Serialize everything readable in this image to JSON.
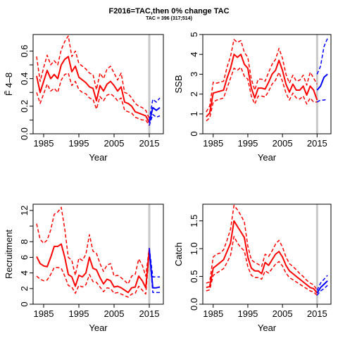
{
  "title": "F2016=TAC,then  0% change TAC",
  "subtitle": "TAC = 396 (317;514)",
  "colors": {
    "history": "#ff0000",
    "projection": "#0000ff",
    "divider": "#c8c8c8"
  },
  "chart_data": [
    {
      "type": "line",
      "xlabel": "Year",
      "ylabel": "F̄ 4–8",
      "xlim": [
        1982,
        2019
      ],
      "ylim": [
        0,
        0.72
      ],
      "xticks": [
        1985,
        1995,
        2005,
        2015
      ],
      "yticks": [
        0,
        0.2,
        0.4,
        0.6
      ],
      "ytick_labels": [
        "0.0",
        "0.2",
        "0.4",
        "0.6"
      ],
      "minor_yticks": [
        0.1,
        0.3,
        0.5
      ],
      "divider_year": 2015,
      "history": {
        "x": [
          1983,
          1984,
          1985,
          1986,
          1987,
          1988,
          1989,
          1990,
          1991,
          1992,
          1993,
          1994,
          1995,
          1996,
          1997,
          1998,
          1999,
          2000,
          2001,
          2002,
          2003,
          2004,
          2005,
          2006,
          2007,
          2008,
          2009,
          2010,
          2011,
          2012,
          2013,
          2014,
          2015
        ],
        "est": [
          0.42,
          0.3,
          0.38,
          0.46,
          0.4,
          0.43,
          0.4,
          0.5,
          0.54,
          0.56,
          0.45,
          0.49,
          0.41,
          0.39,
          0.37,
          0.34,
          0.33,
          0.24,
          0.35,
          0.31,
          0.36,
          0.38,
          0.35,
          0.31,
          0.34,
          0.23,
          0.22,
          0.2,
          0.16,
          0.15,
          0.14,
          0.13,
          0.08
        ],
        "upper": [
          0.56,
          0.38,
          0.48,
          0.57,
          0.5,
          0.53,
          0.5,
          0.61,
          0.67,
          0.71,
          0.56,
          0.6,
          0.51,
          0.49,
          0.47,
          0.44,
          0.43,
          0.32,
          0.44,
          0.4,
          0.47,
          0.49,
          0.44,
          0.39,
          0.44,
          0.3,
          0.29,
          0.26,
          0.22,
          0.2,
          0.19,
          0.17,
          0.11
        ],
        "lower": [
          0.3,
          0.22,
          0.29,
          0.36,
          0.31,
          0.33,
          0.3,
          0.39,
          0.43,
          0.44,
          0.35,
          0.38,
          0.32,
          0.3,
          0.29,
          0.26,
          0.25,
          0.18,
          0.27,
          0.24,
          0.28,
          0.29,
          0.27,
          0.24,
          0.26,
          0.17,
          0.16,
          0.15,
          0.12,
          0.11,
          0.1,
          0.1,
          0.06
        ]
      },
      "projection": {
        "x": [
          2015,
          2016,
          2017,
          2018
        ],
        "est": [
          0.08,
          0.19,
          0.17,
          0.19
        ],
        "upper": [
          0.1,
          0.25,
          0.23,
          0.26
        ],
        "lower": [
          0.06,
          0.14,
          0.12,
          0.13
        ]
      }
    },
    {
      "type": "line",
      "xlabel": "Year",
      "ylabel": "SSB",
      "xlim": [
        1982,
        2019
      ],
      "ylim": [
        0,
        5.0
      ],
      "xticks": [
        1985,
        1995,
        2005,
        2015
      ],
      "yticks": [
        0,
        1,
        2,
        3,
        4,
        5
      ],
      "ytick_labels": [
        "0",
        "1",
        "2",
        "3",
        "4",
        "5"
      ],
      "minor_yticks": [],
      "divider_year": 2015,
      "history": {
        "x": [
          1983,
          1984,
          1985,
          1986,
          1987,
          1988,
          1989,
          1990,
          1991,
          1992,
          1993,
          1994,
          1995,
          1996,
          1997,
          1998,
          1999,
          2000,
          2001,
          2002,
          2003,
          2004,
          2005,
          2006,
          2007,
          2008,
          2009,
          2010,
          2011,
          2012,
          2013,
          2014,
          2015
        ],
        "est": [
          0.85,
          1.05,
          2.05,
          2.1,
          2.15,
          2.2,
          2.8,
          3.3,
          4.0,
          3.85,
          4.0,
          3.5,
          3.3,
          2.3,
          1.8,
          2.3,
          2.3,
          2.25,
          2.6,
          3.0,
          3.2,
          3.7,
          3.2,
          2.5,
          2.1,
          2.5,
          2.2,
          2.2,
          2.4,
          1.95,
          2.4,
          2.2,
          1.7
        ],
        "upper": [
          1.1,
          1.4,
          2.6,
          2.55,
          2.6,
          2.65,
          3.35,
          3.9,
          4.75,
          4.6,
          4.7,
          4.1,
          3.85,
          2.75,
          2.2,
          2.75,
          2.75,
          2.65,
          3.1,
          3.5,
          3.75,
          4.3,
          3.8,
          3.0,
          2.55,
          2.95,
          2.65,
          2.7,
          2.95,
          2.45,
          3.1,
          2.8,
          2.5
        ],
        "lower": [
          0.65,
          0.8,
          1.6,
          1.7,
          1.75,
          1.8,
          2.3,
          2.8,
          3.3,
          3.2,
          3.35,
          2.9,
          2.75,
          1.9,
          1.5,
          1.9,
          1.9,
          1.85,
          2.15,
          2.5,
          2.7,
          3.1,
          2.65,
          2.05,
          1.7,
          2.05,
          1.8,
          1.75,
          1.9,
          1.5,
          1.8,
          1.6,
          1.6
        ]
      },
      "projection": {
        "x": [
          2015,
          2016,
          2017,
          2018
        ],
        "est": [
          2.2,
          2.4,
          2.85,
          3.0
        ],
        "upper": [
          3.0,
          3.4,
          4.4,
          4.8
        ],
        "lower": [
          1.6,
          1.7,
          1.7,
          1.75
        ]
      }
    },
    {
      "type": "line",
      "xlabel": "Year",
      "ylabel": "Recruitment",
      "xlim": [
        1982,
        2019
      ],
      "ylim": [
        0,
        12.8
      ],
      "xticks": [
        1985,
        1995,
        2005,
        2015
      ],
      "yticks": [
        0,
        2,
        4,
        6,
        8,
        12
      ],
      "ytick_labels": [
        "0",
        "2",
        "4",
        "6",
        "8",
        "12"
      ],
      "minor_yticks": [
        10
      ],
      "divider_year": 2015,
      "history": {
        "x": [
          1983,
          1984,
          1985,
          1986,
          1987,
          1988,
          1989,
          1990,
          1991,
          1992,
          1993,
          1994,
          1995,
          1996,
          1997,
          1998,
          1999,
          2000,
          2001,
          2002,
          2003,
          2004,
          2005,
          2006,
          2007,
          2008,
          2009,
          2010,
          2011,
          2012,
          2013,
          2014,
          2015
        ],
        "est": [
          6.1,
          5.2,
          4.9,
          4.8,
          6.0,
          7.4,
          7.4,
          7.7,
          6.0,
          3.8,
          3.5,
          2.3,
          3.7,
          3.5,
          4.0,
          6.0,
          4.6,
          4.4,
          3.4,
          2.6,
          3.2,
          3.0,
          2.2,
          2.3,
          2.1,
          1.8,
          1.5,
          2.1,
          2.2,
          3.6,
          3.0,
          2.1,
          7.0
        ],
        "upper": [
          10.3,
          8.3,
          7.8,
          8.2,
          9.5,
          11.5,
          11.8,
          12.4,
          9.6,
          6.0,
          5.6,
          3.7,
          5.9,
          5.6,
          6.4,
          8.9,
          6.8,
          6.5,
          5.2,
          4.2,
          5.0,
          5.2,
          3.6,
          3.7,
          3.4,
          3.0,
          2.6,
          3.6,
          3.8,
          5.8,
          5.0,
          3.6,
          7.2
        ],
        "lower": [
          3.6,
          3.2,
          3.0,
          3.1,
          3.8,
          4.7,
          4.7,
          4.6,
          3.6,
          2.4,
          2.2,
          1.4,
          2.4,
          2.2,
          2.5,
          3.8,
          2.9,
          2.8,
          2.2,
          1.6,
          2.1,
          2.0,
          1.4,
          1.5,
          1.3,
          1.1,
          0.9,
          1.3,
          1.4,
          2.3,
          1.8,
          1.3,
          6.8
        ]
      },
      "projection": {
        "x": [
          2015,
          2016,
          2017,
          2018
        ],
        "est": [
          7.0,
          2.1,
          2.1,
          2.2
        ],
        "upper": [
          7.2,
          3.5,
          3.5,
          3.5
        ],
        "lower": [
          6.8,
          1.5,
          1.5,
          1.5
        ]
      }
    },
    {
      "type": "line",
      "xlabel": "Year",
      "ylabel": "Catch",
      "xlim": [
        1982,
        2019
      ],
      "ylim": [
        0,
        1.8
      ],
      "xticks": [
        1985,
        1995,
        2005,
        2015
      ],
      "yticks": [
        0,
        0.5,
        1.0,
        1.5
      ],
      "ytick_labels": [
        "0.0",
        "0.5",
        "1.0",
        "1.5"
      ],
      "minor_yticks": [],
      "divider_year": 2015,
      "history": {
        "x": [
          1983,
          1984,
          1985,
          1986,
          1987,
          1988,
          1989,
          1990,
          1991,
          1992,
          1993,
          1994,
          1995,
          1996,
          1997,
          1998,
          1999,
          2000,
          2001,
          2002,
          2003,
          2004,
          2005,
          2006,
          2007,
          2008,
          2009,
          2010,
          2011,
          2012,
          2013,
          2014,
          2015
        ],
        "est": [
          0.3,
          0.32,
          0.65,
          0.7,
          0.75,
          0.8,
          0.95,
          1.1,
          1.5,
          1.4,
          1.3,
          1.2,
          0.85,
          0.65,
          0.6,
          0.6,
          0.55,
          0.75,
          0.7,
          0.8,
          0.9,
          0.95,
          0.85,
          0.7,
          0.6,
          0.55,
          0.5,
          0.45,
          0.4,
          0.35,
          0.3,
          0.28,
          0.2
        ],
        "upper": [
          0.38,
          0.4,
          0.85,
          0.9,
          0.92,
          0.98,
          1.15,
          1.35,
          1.78,
          1.7,
          1.6,
          1.48,
          1.05,
          0.8,
          0.75,
          0.72,
          0.68,
          0.9,
          0.86,
          0.96,
          1.08,
          1.15,
          1.03,
          0.85,
          0.73,
          0.68,
          0.62,
          0.55,
          0.5,
          0.43,
          0.38,
          0.35,
          0.25
        ],
        "lower": [
          0.24,
          0.26,
          0.52,
          0.56,
          0.6,
          0.64,
          0.75,
          0.88,
          1.22,
          1.1,
          1.02,
          0.96,
          0.68,
          0.52,
          0.48,
          0.48,
          0.45,
          0.6,
          0.56,
          0.64,
          0.72,
          0.77,
          0.69,
          0.56,
          0.48,
          0.44,
          0.4,
          0.36,
          0.32,
          0.28,
          0.24,
          0.22,
          0.16
        ]
      },
      "projection": {
        "x": [
          2015,
          2016,
          2017,
          2018
        ],
        "est": [
          0.2,
          0.3,
          0.36,
          0.42
        ],
        "upper": [
          0.25,
          0.38,
          0.45,
          0.52
        ],
        "lower": [
          0.16,
          0.24,
          0.28,
          0.34
        ]
      }
    }
  ]
}
